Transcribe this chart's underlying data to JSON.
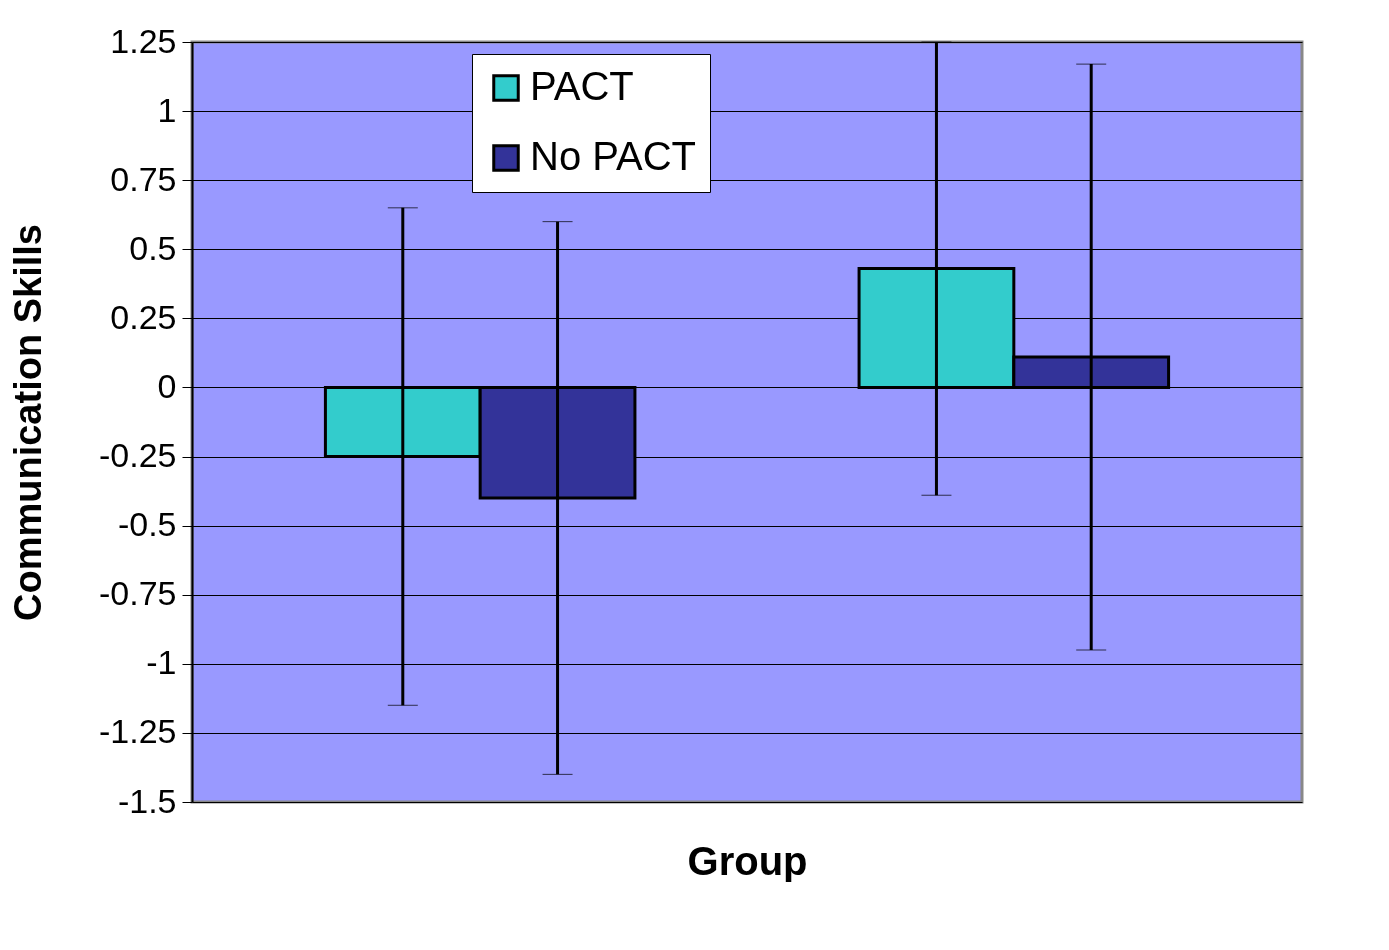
{
  "chart_data": {
    "type": "bar",
    "xlabel": "Group",
    "ylabel": "Communication Skills",
    "categories": [
      null,
      null
    ],
    "series": [
      {
        "name": "PACT",
        "color": "#33cccc",
        "values": [
          -0.25,
          0.43
        ],
        "errors": [
          0.9,
          0.82
        ]
      },
      {
        "name": "No PACT",
        "color": "#333399",
        "values": [
          -0.4,
          0.11
        ],
        "errors": [
          1.0,
          1.06
        ]
      }
    ],
    "ylim": [
      -1.5,
      1.25
    ],
    "yticks": [
      -1.5,
      -1.25,
      -1,
      -0.75,
      -0.5,
      -0.25,
      0,
      0.25,
      0.5,
      0.75,
      1,
      1.25
    ],
    "grid": "y",
    "legend": "top left",
    "tick_labels": "y"
  }
}
